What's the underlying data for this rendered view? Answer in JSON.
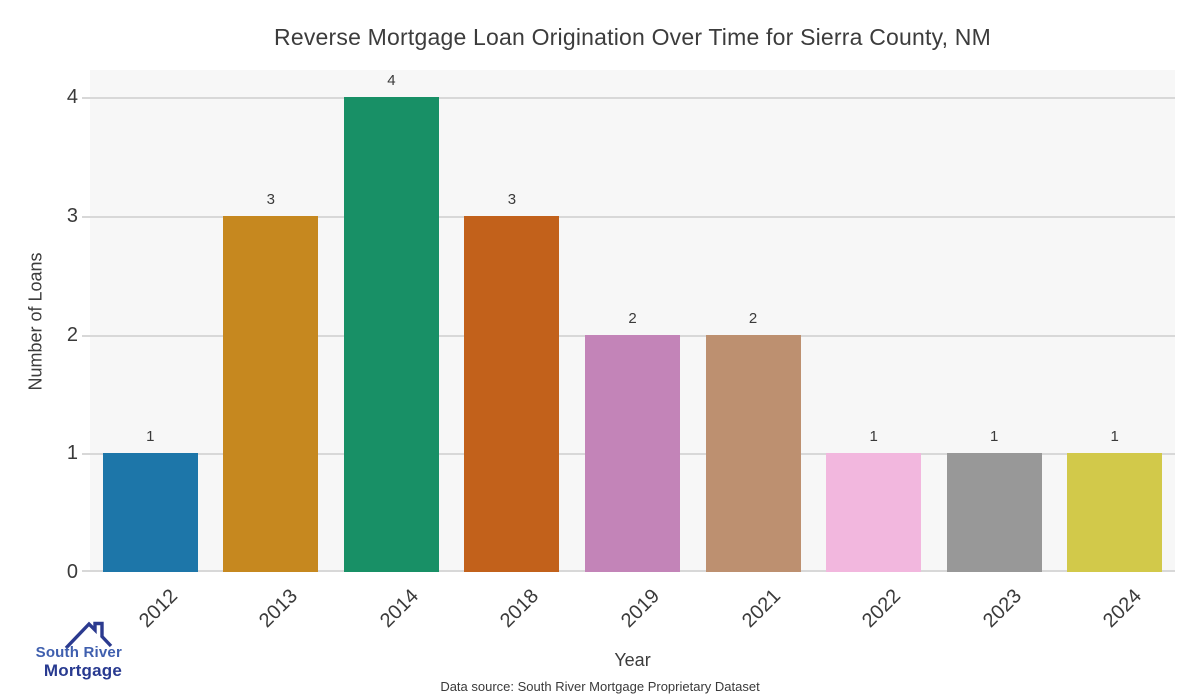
{
  "footer": {
    "source": "Data source: South River Mortgage Proprietary Dataset"
  },
  "logo": {
    "line1": "South River",
    "line2": "Mortgage",
    "line1_color": "#3f5fae",
    "line2_color": "#283a90",
    "roof_color": "#2b3a8f"
  },
  "chart_data": {
    "type": "bar",
    "title": "Reverse Mortgage Loan Origination Over Time for Sierra County, NM",
    "xlabel": "Year",
    "ylabel": "Number of Loans",
    "categories": [
      "2012",
      "2013",
      "2014",
      "2018",
      "2019",
      "2021",
      "2022",
      "2023",
      "2024"
    ],
    "values": [
      1,
      3,
      4,
      3,
      2,
      2,
      1,
      1,
      1
    ],
    "bar_labels": [
      "1",
      "3",
      "4",
      "3",
      "2",
      "2",
      "1",
      "1",
      "1"
    ],
    "bar_colors": [
      "#1d76a9",
      "#c6881f",
      "#189066",
      "#c2611b",
      "#c384b8",
      "#bd9070",
      "#f2b7de",
      "#989898",
      "#d2c94a"
    ],
    "yticks": [
      0,
      1,
      2,
      3,
      4
    ],
    "ylim": [
      0,
      4.23
    ],
    "grid": true,
    "legend": null,
    "plot_bg": "#f7f7f7",
    "gridline_color": "#d8d8d8",
    "figure_bg": "#ffffff"
  }
}
